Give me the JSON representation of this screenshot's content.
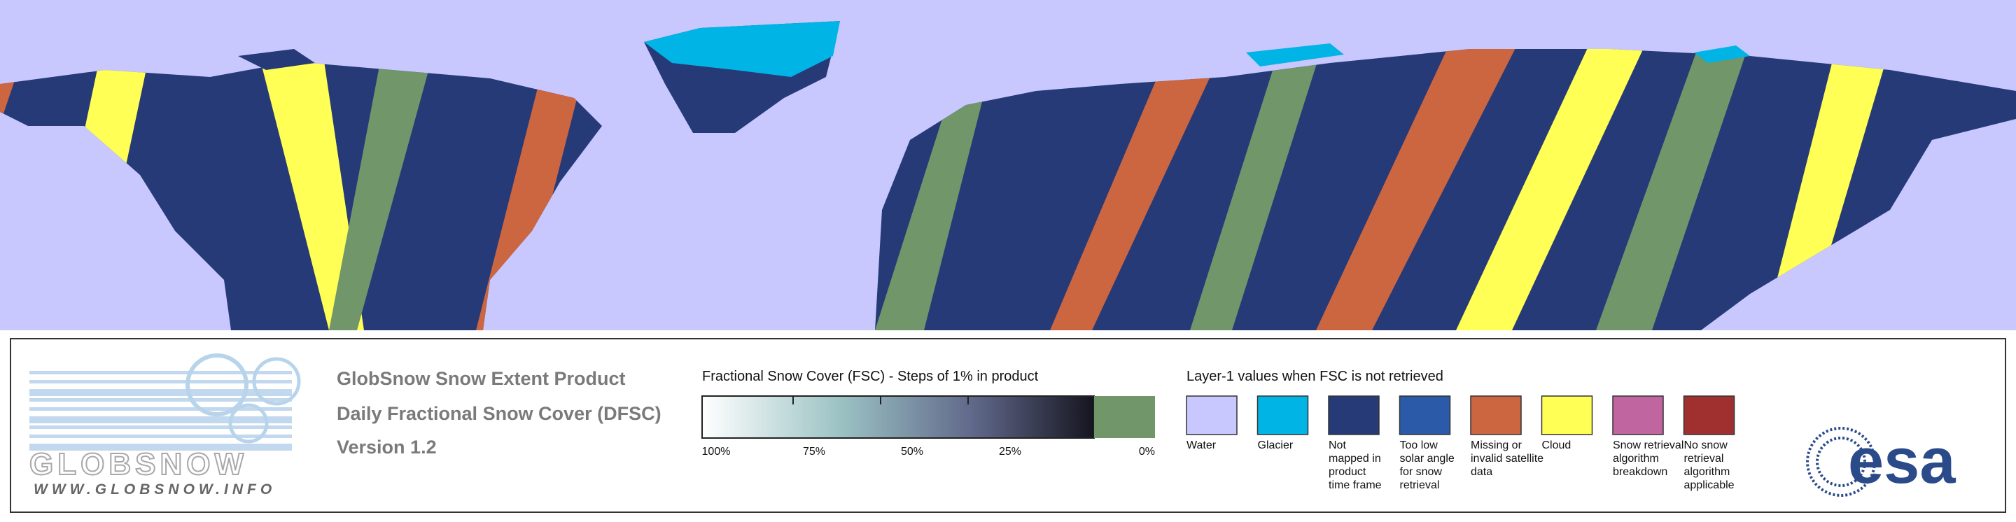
{
  "header": {
    "lines": [
      "GlobSnow Snow Extent Product",
      "Daily Fractional Snow Cover (DFSC)",
      "Version 1.2"
    ]
  },
  "logo": {
    "name": "GLOBSNOW",
    "url": "WWW.GLOBSNOW.INFO",
    "agency": "esa"
  },
  "fsc_legend": {
    "title": "Fractional Snow Cover (FSC) - Steps of 1% in product",
    "labels": [
      "100%",
      "75%",
      "50%",
      "25%",
      "0%"
    ]
  },
  "layer1_legend": {
    "title": "Layer-1 values when FSC is not retrieved",
    "items": [
      {
        "lines": [
          "Water"
        ],
        "color": "#c8c8ff"
      },
      {
        "lines": [
          "Glacier"
        ],
        "color": "#00b4e6"
      },
      {
        "lines": [
          "Not",
          "mapped in",
          "product",
          "time frame"
        ],
        "color": "#263a78"
      },
      {
        "lines": [
          "Too low",
          "solar angle",
          "for snow",
          "retrieval"
        ],
        "color": "#2b5aa8"
      },
      {
        "lines": [
          "Missing or",
          "invalid satellite",
          "data"
        ],
        "color": "#cc6640"
      },
      {
        "lines": [
          "Cloud"
        ],
        "color": "#ffff55"
      },
      {
        "lines": [
          "Snow retrieval",
          "algorithm",
          "breakdown"
        ],
        "color": "#c065a0"
      },
      {
        "lines": [
          "No snow",
          "retrieval",
          "algorithm",
          "applicable"
        ],
        "color": "#a03030"
      }
    ]
  }
}
